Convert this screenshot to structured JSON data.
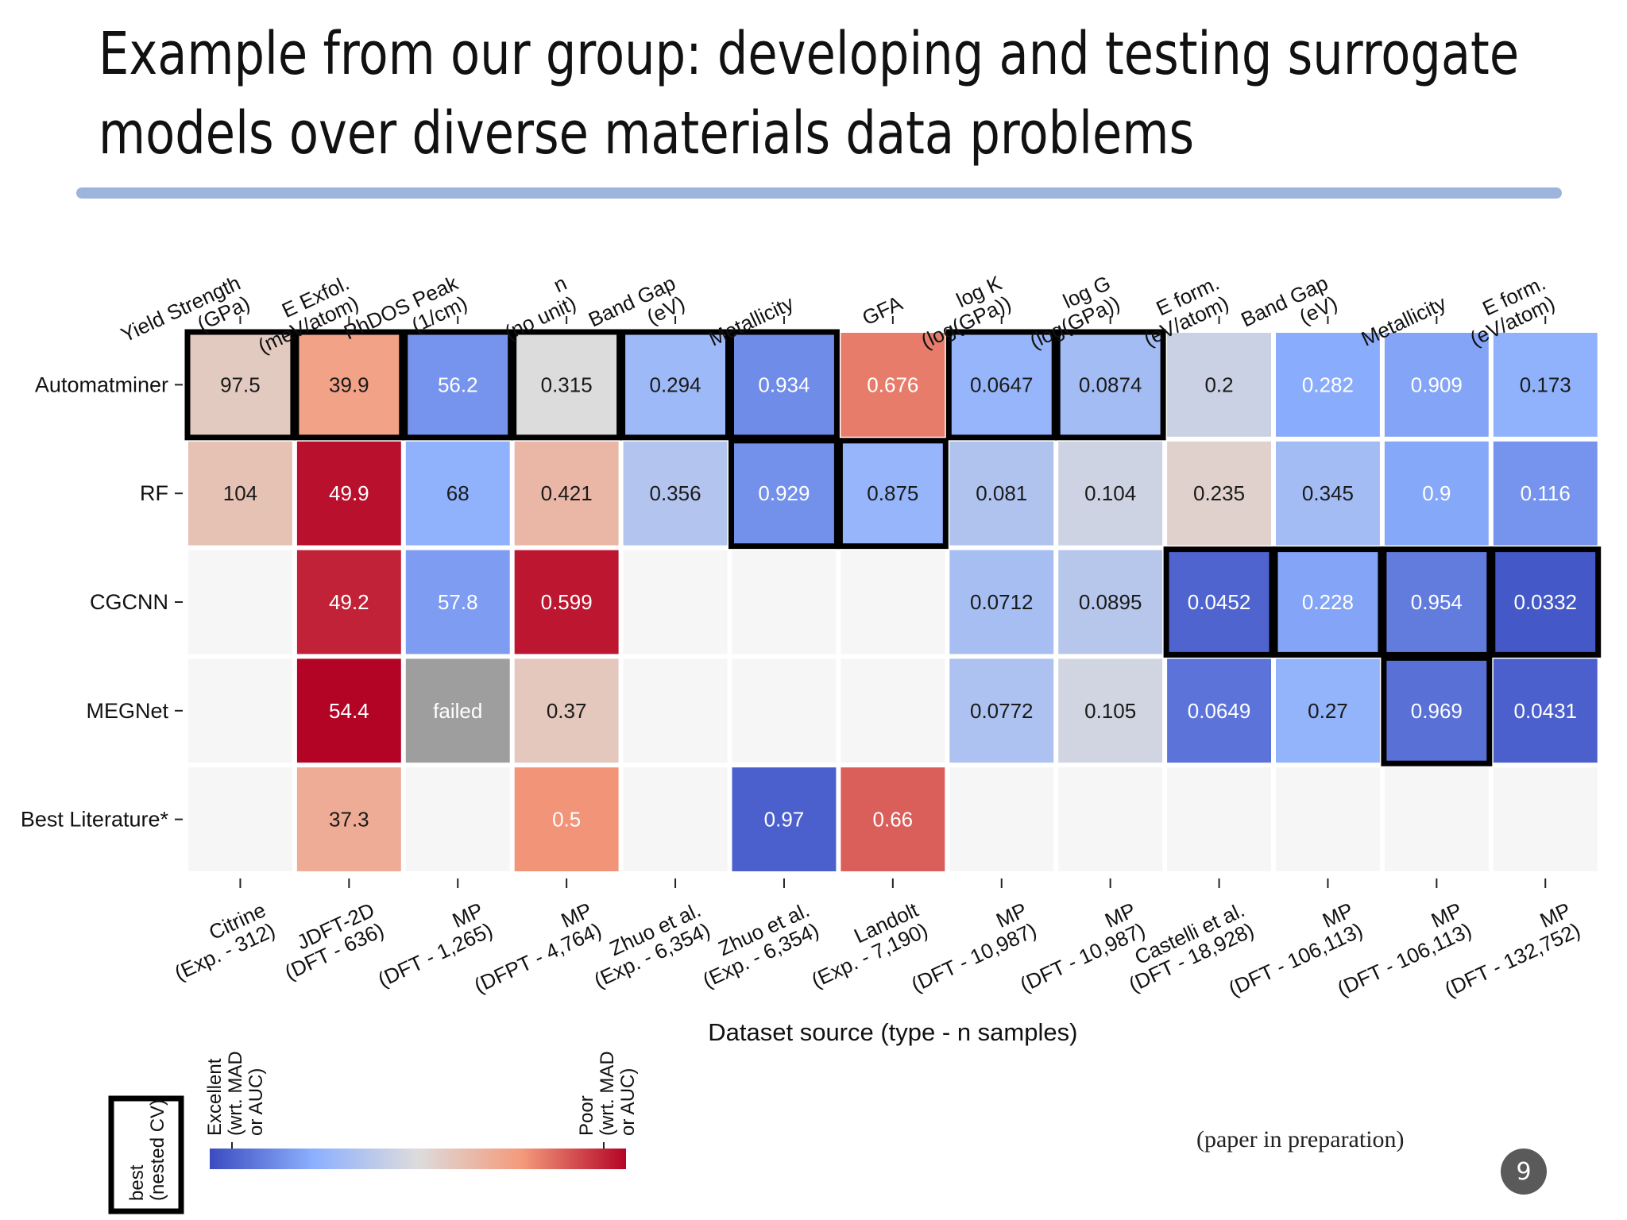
{
  "slide": {
    "title_line1": "Example from our group: developing and testing surrogate",
    "title_line2": "models over diverse materials data problems",
    "footnote": "(paper in preparation)",
    "page_number": "9"
  },
  "chart_data": {
    "type": "heatmap",
    "title": "",
    "xlabel": "Dataset source (type - n samples)",
    "ylabel": "",
    "top_labels": [
      [
        "Yield Strength",
        "(GPa)"
      ],
      [
        "E Exfol.",
        "(meV/atom)"
      ],
      [
        "PhDOS Peak",
        "(1/cm)"
      ],
      [
        "n",
        "(no unit)"
      ],
      [
        "Band Gap",
        "(eV)"
      ],
      [
        "Metallicity"
      ],
      [
        "GFA"
      ],
      [
        "log K",
        "(log(GPa))"
      ],
      [
        "log G",
        "(log(GPa))"
      ],
      [
        "E form.",
        "(eV/atom)"
      ],
      [
        "Band Gap",
        "(eV)"
      ],
      [
        "Metallicity"
      ],
      [
        "E form.",
        "(eV/atom)"
      ]
    ],
    "bottom_labels": [
      [
        "Citrine",
        "(Exp. - 312)"
      ],
      [
        "JDFT-2D",
        "(DFT - 636)"
      ],
      [
        "MP",
        "(DFT - 1,265)"
      ],
      [
        "MP",
        "(DFPT - 4,764)"
      ],
      [
        "Zhuo et al.",
        "(Exp. - 6,354)"
      ],
      [
        "Zhuo et al.",
        "(Exp. - 6,354)"
      ],
      [
        "Landolt",
        "(Exp. - 7,190)"
      ],
      [
        "MP",
        "(DFT - 10,987)"
      ],
      [
        "MP",
        "(DFT - 10,987)"
      ],
      [
        "Castelli et al.",
        "(DFT - 18,928)"
      ],
      [
        "MP",
        "(DFT - 106,113)"
      ],
      [
        "MP",
        "(DFT - 106,113)"
      ],
      [
        "MP",
        "(DFT - 132,752)"
      ]
    ],
    "rows": [
      "Automatminer",
      "RF",
      "CGCNN",
      "MEGNet",
      "Best Literature*"
    ],
    "cells": [
      [
        "97.5",
        "39.9",
        "56.2",
        "0.315",
        "0.294",
        "0.934",
        "0.676",
        "0.0647",
        "0.0874",
        "0.2",
        "0.282",
        "0.909",
        "0.173"
      ],
      [
        "104",
        "49.9",
        "68",
        "0.421",
        "0.356",
        "0.929",
        "0.875",
        "0.081",
        "0.104",
        "0.235",
        "0.345",
        "0.9",
        "0.116"
      ],
      [
        "",
        "49.2",
        "57.8",
        "0.599",
        "",
        "",
        "",
        "0.0712",
        "0.0895",
        "0.0452",
        "0.228",
        "0.954",
        "0.0332"
      ],
      [
        "",
        "54.4",
        "failed",
        "0.37",
        "",
        "",
        "",
        "0.0772",
        "0.105",
        "0.0649",
        "0.27",
        "0.969",
        "0.0431"
      ],
      [
        "",
        "37.3",
        "",
        "0.5",
        "",
        "0.97",
        "0.66",
        "",
        "",
        "",
        "",
        "",
        ""
      ]
    ],
    "scores": [
      [
        0.57,
        0.72,
        0.18,
        0.5,
        0.3,
        0.16,
        0.8,
        0.28,
        0.32,
        0.44,
        0.24,
        0.22,
        0.26
      ],
      [
        0.6,
        0.98,
        0.26,
        0.64,
        0.37,
        0.17,
        0.28,
        0.36,
        0.45,
        0.54,
        0.32,
        0.23,
        0.18
      ],
      [
        null,
        0.95,
        0.2,
        0.97,
        null,
        null,
        null,
        0.33,
        0.38,
        0.06,
        0.22,
        0.12,
        0.03
      ],
      [
        null,
        1.0,
        null,
        0.58,
        null,
        null,
        null,
        0.35,
        0.46,
        0.1,
        0.27,
        0.09,
        0.05
      ],
      [
        null,
        0.68,
        null,
        0.76,
        null,
        0.05,
        0.85,
        null,
        null,
        null,
        null,
        null,
        null
      ]
    ],
    "best_boxes": [
      [
        0,
        0
      ],
      [
        0,
        1
      ],
      [
        0,
        2
      ],
      [
        0,
        3
      ],
      [
        0,
        4
      ],
      [
        0,
        5
      ],
      [
        1,
        5
      ],
      [
        0,
        7
      ],
      [
        0,
        8
      ],
      [
        1,
        6
      ],
      [
        2,
        9
      ],
      [
        2,
        10
      ],
      [
        2,
        12
      ],
      [
        2,
        11
      ],
      [
        3,
        11
      ]
    ],
    "colorbar": {
      "low_label": [
        "Excellent",
        "(wrt. MAD",
        "or AUC)"
      ],
      "high_label": [
        "Poor",
        "(wrt. MAD",
        "or AUC)"
      ],
      "colors": [
        "#3b4cc0",
        "#8db0fe",
        "#dddcdc",
        "#f49a7b",
        "#b40426"
      ]
    },
    "legend_box_label": [
      "best",
      "(nested CV)"
    ],
    "colors": {
      "empty_cell": "#f7f6f7",
      "failed_cell": "#9e9e9e",
      "best_border": "#000000"
    }
  }
}
